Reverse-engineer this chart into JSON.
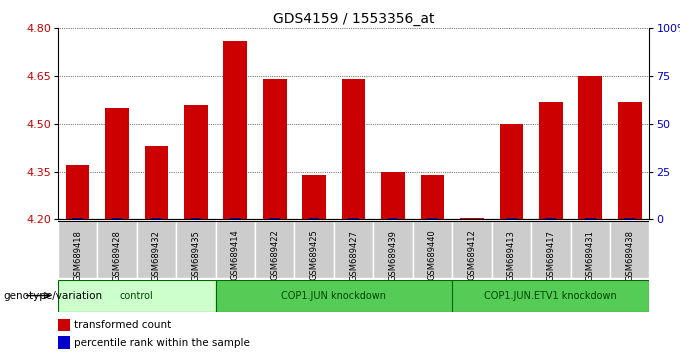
{
  "title": "GDS4159 / 1553356_at",
  "samples": [
    "GSM689418",
    "GSM689428",
    "GSM689432",
    "GSM689435",
    "GSM689414",
    "GSM689422",
    "GSM689425",
    "GSM689427",
    "GSM689439",
    "GSM689440",
    "GSM689412",
    "GSM689413",
    "GSM689417",
    "GSM689431",
    "GSM689438"
  ],
  "red_values": [
    4.37,
    4.55,
    4.43,
    4.56,
    4.76,
    4.64,
    4.34,
    4.64,
    4.35,
    4.34,
    4.205,
    4.5,
    4.57,
    4.65,
    4.57
  ],
  "blue_percentile": [
    10,
    10,
    10,
    10,
    10,
    10,
    10,
    10,
    10,
    10,
    2,
    10,
    10,
    10,
    10
  ],
  "base": 4.2,
  "ylim_left": [
    4.2,
    4.8
  ],
  "ylim_right": [
    0,
    100
  ],
  "yticks_left": [
    4.2,
    4.35,
    4.5,
    4.65,
    4.8
  ],
  "yticks_right": [
    0,
    25,
    50,
    75,
    100
  ],
  "groups": [
    {
      "label": "control",
      "start": 0,
      "end": 4,
      "color": "#ccffcc"
    },
    {
      "label": "COP1.JUN knockdown",
      "start": 4,
      "end": 10,
      "color": "#55cc55"
    },
    {
      "label": "COP1.JUN.ETV1 knockdown",
      "start": 10,
      "end": 15,
      "color": "#55cc55"
    }
  ],
  "bar_width": 0.6,
  "red_color": "#cc0000",
  "blue_color": "#0000cc",
  "tick_label_color": "#cc0000",
  "right_axis_color": "#0000cc",
  "background_color": "#ffffff",
  "legend_items": [
    "transformed count",
    "percentile rank within the sample"
  ],
  "xlabel": "genotype/variation",
  "cell_bg": "#cccccc"
}
